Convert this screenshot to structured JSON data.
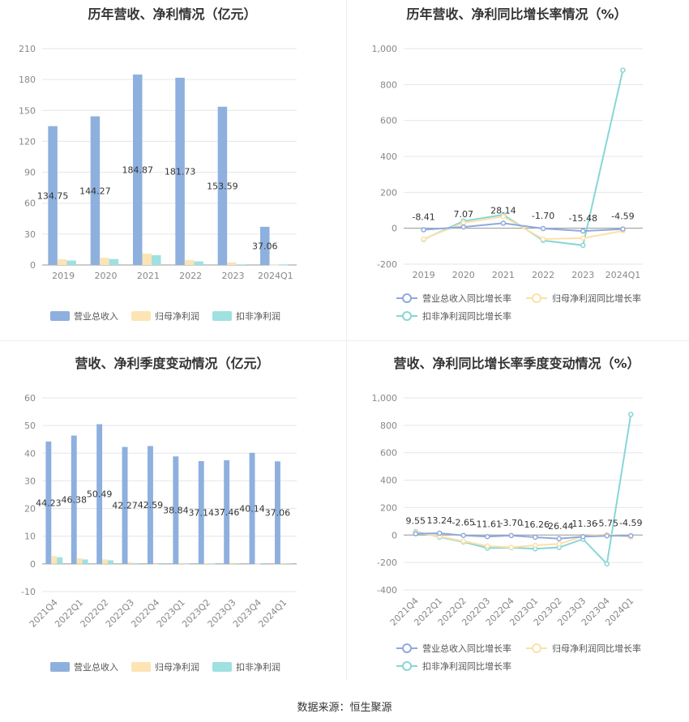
{
  "footer": {
    "source": "数据来源：恒生聚源"
  },
  "colors": {
    "revenue": "#8eb0de",
    "net_profit": "#fde4b4",
    "deducted_profit": "#9fe0e0",
    "revenue_line": "#8eaadf",
    "net_line": "#fde0a8",
    "deducted_line": "#88d6d6"
  },
  "chart_data": [
    {
      "type": "bar",
      "title": "历年营收、净利情况（亿元）",
      "categories": [
        "2019",
        "2020",
        "2021",
        "2022",
        "2023",
        "2024Q1"
      ],
      "ylim": [
        0,
        210
      ],
      "yticks": [
        "0",
        "30",
        "60",
        "90",
        "120",
        "150",
        "180",
        "210"
      ],
      "series": [
        {
          "name": "营业总收入",
          "values": [
            134.75,
            144.27,
            184.87,
            181.73,
            153.59,
            37.06
          ],
          "labels": [
            "134.75",
            "144.27",
            "184.87",
            "181.73",
            "153.59",
            "37.06"
          ]
        },
        {
          "name": "归母净利润",
          "values": [
            5.5,
            7.0,
            11.0,
            4.8,
            2.5,
            0.3
          ]
        },
        {
          "name": "扣非净利润",
          "values": [
            4.3,
            5.8,
            9.5,
            3.5,
            0.6,
            0.2
          ]
        }
      ],
      "legend": "bottom"
    },
    {
      "type": "line",
      "title": "历年营收、净利同比增长率情况（%）",
      "categories": [
        "2019",
        "2020",
        "2021",
        "2022",
        "2023",
        "2024Q1"
      ],
      "ylim": [
        -200,
        1000
      ],
      "yticks": [
        "-200",
        "0",
        "200",
        "400",
        "600",
        "800",
        "1,000"
      ],
      "series": [
        {
          "name": "营业总收入同比增长率",
          "values": [
            -8.41,
            7.07,
            28.14,
            -1.7,
            -15.48,
            -4.59
          ],
          "labels": [
            "-8.41",
            "7.07",
            "28.14",
            "-1.70",
            "-15.48",
            "-4.59"
          ]
        },
        {
          "name": "归母净利润同比增长率",
          "values": [
            -60,
            30,
            65,
            -60,
            -55,
            -15
          ]
        },
        {
          "name": "扣非净利润同比增长率",
          "values": [
            -62,
            40,
            75,
            -68,
            -95,
            880
          ]
        }
      ],
      "legend": "bottom"
    },
    {
      "type": "bar",
      "title": "营收、净利季度变动情况（亿元）",
      "categories": [
        "2021Q4",
        "2022Q1",
        "2022Q2",
        "2022Q3",
        "2022Q4",
        "2023Q1",
        "2023Q2",
        "2023Q3",
        "2023Q4",
        "2024Q1"
      ],
      "ylim": [
        -10,
        60
      ],
      "yticks": [
        "-10",
        "0",
        "10",
        "20",
        "30",
        "40",
        "50",
        "60"
      ],
      "series": [
        {
          "name": "营业总收入",
          "values": [
            44.23,
            46.38,
            50.49,
            42.27,
            42.59,
            38.84,
            37.14,
            37.46,
            40.14,
            37.06
          ],
          "labels": [
            "44.23",
            "46.38",
            "50.49",
            "42.27",
            "42.59",
            "38.84",
            "37.14",
            "37.46",
            "40.14",
            "37.06"
          ]
        },
        {
          "name": "归母净利润",
          "values": [
            2.8,
            2.0,
            1.6,
            0.5,
            -0.2,
            0.3,
            0.2,
            0.4,
            0.1,
            0.3
          ]
        },
        {
          "name": "扣非净利润",
          "values": [
            2.4,
            1.6,
            1.3,
            0.2,
            -0.3,
            0.1,
            0.1,
            0.2,
            -0.3,
            0.2
          ]
        }
      ],
      "legend": "bottom"
    },
    {
      "type": "line",
      "title": "营收、净利同比增长率季度变动情况（%）",
      "categories": [
        "2021Q4",
        "2022Q1",
        "2022Q2",
        "2022Q3",
        "2022Q4",
        "2023Q1",
        "2023Q2",
        "2023Q3",
        "2023Q4",
        "2024Q1"
      ],
      "ylim": [
        -400,
        1000
      ],
      "yticks": [
        "-400",
        "-200",
        "0",
        "200",
        "400",
        "600",
        "800",
        "1,000"
      ],
      "series": [
        {
          "name": "营业总收入同比增长率",
          "values": [
            9.55,
            13.24,
            -2.65,
            -11.61,
            -3.7,
            -16.26,
            -26.44,
            -11.36,
            -5.75,
            -4.59
          ],
          "labels": [
            "9.55",
            "13.24",
            "-2.65",
            "-11.61",
            "-3.70",
            "-16.26",
            "-26.44",
            "-11.36",
            "-5.75",
            "-4.59"
          ]
        },
        {
          "name": "归母净利润同比增长率",
          "values": [
            20,
            -10,
            -45,
            -80,
            -90,
            -75,
            -65,
            -10,
            5,
            -15
          ]
        },
        {
          "name": "扣非净利润同比增长率",
          "values": [
            25,
            -15,
            -50,
            -95,
            -92,
            -100,
            -90,
            -30,
            -210,
            880
          ]
        }
      ],
      "legend": "bottom"
    }
  ]
}
